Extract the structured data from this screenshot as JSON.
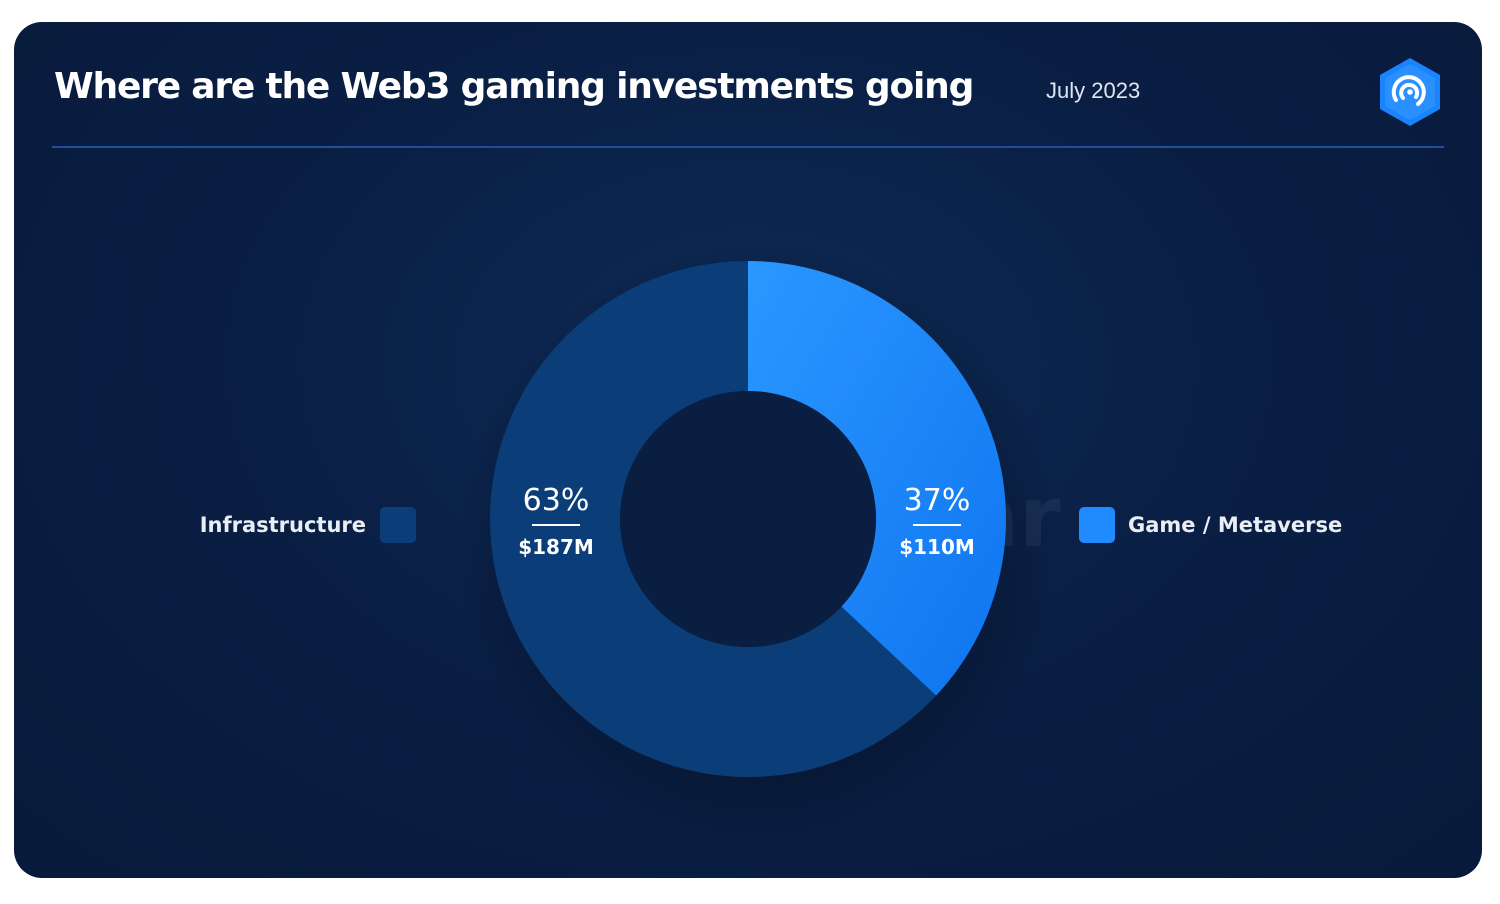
{
  "header": {
    "title": "Where are the Web3 gaming investments going",
    "date": "July 2023"
  },
  "watermark": "appRadar",
  "colors": {
    "background": "#0a1f45",
    "infrastructure": "#0b3e78",
    "game_metaverse": "#1f8bff",
    "divider": "#1d4f9c"
  },
  "icons": {
    "brand": "appradar-hexagon-logo"
  },
  "chart_data": {
    "type": "pie",
    "title": "Where are the Web3 gaming investments going",
    "subtitle": "July 2023",
    "legend_placement": "left-and-right",
    "slices": [
      {
        "label": "Game / Metaverse",
        "percent": 37,
        "percent_label": "37%",
        "value": 110,
        "value_label": "$110M",
        "color": "#1f8bff"
      },
      {
        "label": "Infrastructure",
        "percent": 63,
        "percent_label": "63%",
        "value": 187,
        "value_label": "$187M",
        "color": "#0b3e78"
      }
    ]
  }
}
